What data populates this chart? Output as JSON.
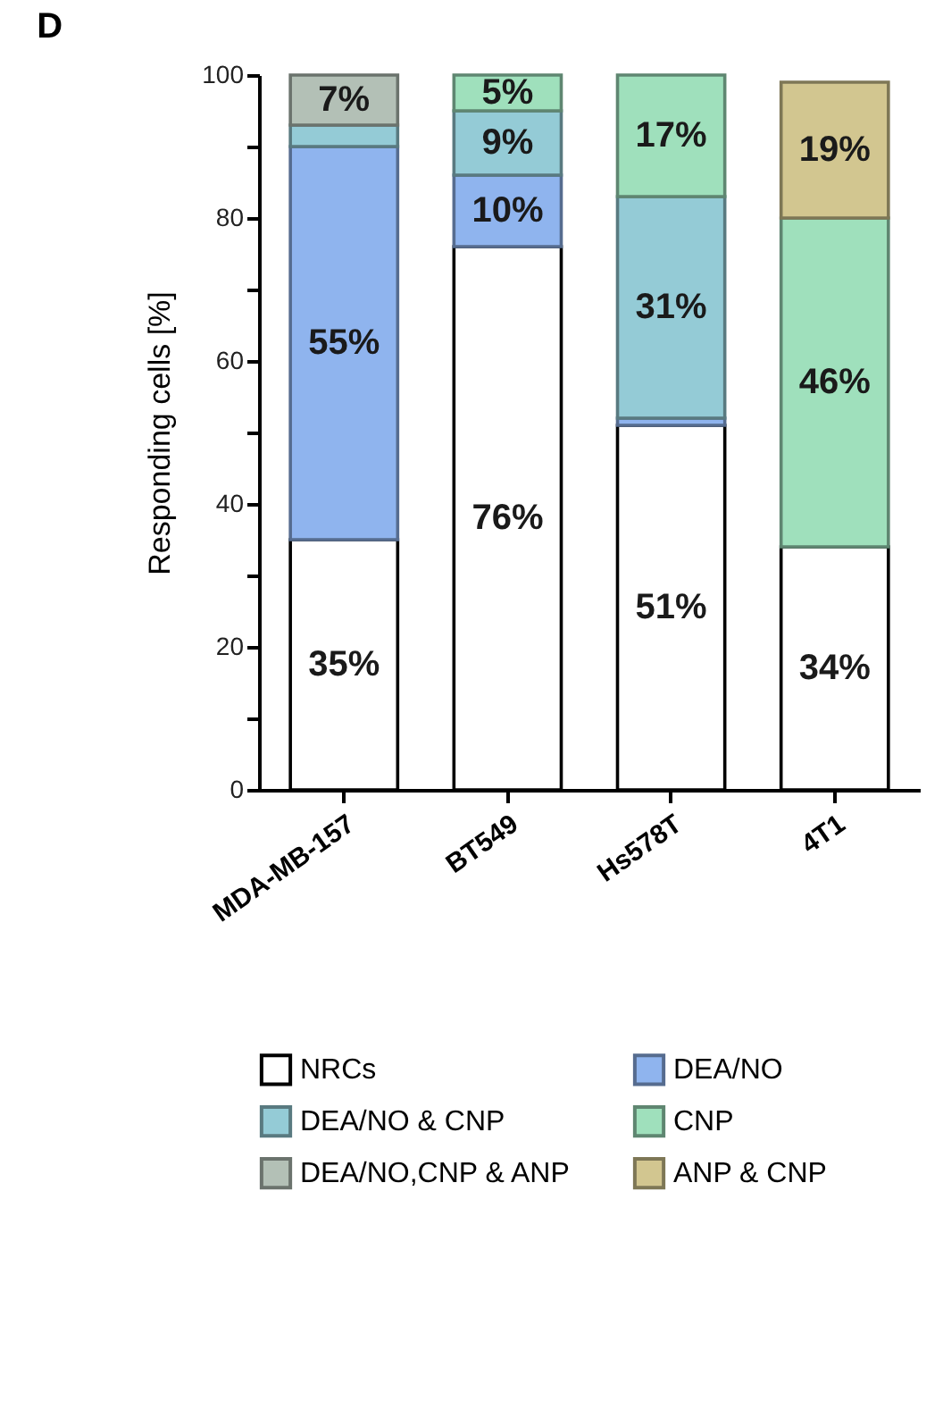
{
  "chart_data": {
    "type": "bar",
    "stacked": true,
    "title": "D",
    "ylabel": "Responding cells [%]",
    "categories": [
      "MDA-MB-157",
      "BT549",
      "Hs578T",
      "4T1"
    ],
    "series": [
      {
        "name": "NRCs",
        "color": "#ffffff",
        "values": [
          35,
          76,
          51,
          34
        ],
        "value_labels": [
          "35%",
          "76%",
          "51%",
          "34%"
        ]
      },
      {
        "name": "DEA/NO",
        "color": "#8fb4ee",
        "values": [
          55,
          10,
          1,
          null
        ],
        "value_labels": [
          "55%",
          "10%",
          null,
          null
        ]
      },
      {
        "name": "DEA/NO & CNP",
        "color": "#94cbd6",
        "values": [
          3,
          9,
          31,
          null
        ],
        "value_labels": [
          null,
          "9%",
          "31%",
          null
        ]
      },
      {
        "name": "CNP",
        "color": "#9fe0bc",
        "values": [
          null,
          5,
          17,
          46
        ],
        "value_labels": [
          null,
          "5%",
          "17%",
          "46%"
        ]
      },
      {
        "name": "DEA/NO,CNP & ANP",
        "color": "#b3c0b6",
        "values": [
          7,
          null,
          null,
          null
        ],
        "value_labels": [
          "7%",
          null,
          null,
          null
        ]
      },
      {
        "name": "ANP & CNP",
        "color": "#d2c690",
        "values": [
          null,
          null,
          null,
          19
        ],
        "value_labels": [
          null,
          null,
          null,
          "19%"
        ]
      }
    ],
    "ylim": [
      0,
      100
    ],
    "yticks": [
      0,
      {
        "value": 10,
        "label": null
      },
      20,
      {
        "value": 30,
        "label": null
      },
      40,
      {
        "value": 50,
        "label": null
      },
      60,
      {
        "value": 70,
        "label": null
      },
      80,
      {
        "value": 90,
        "label": null
      },
      100
    ],
    "grid": false,
    "legend": "bottom"
  }
}
